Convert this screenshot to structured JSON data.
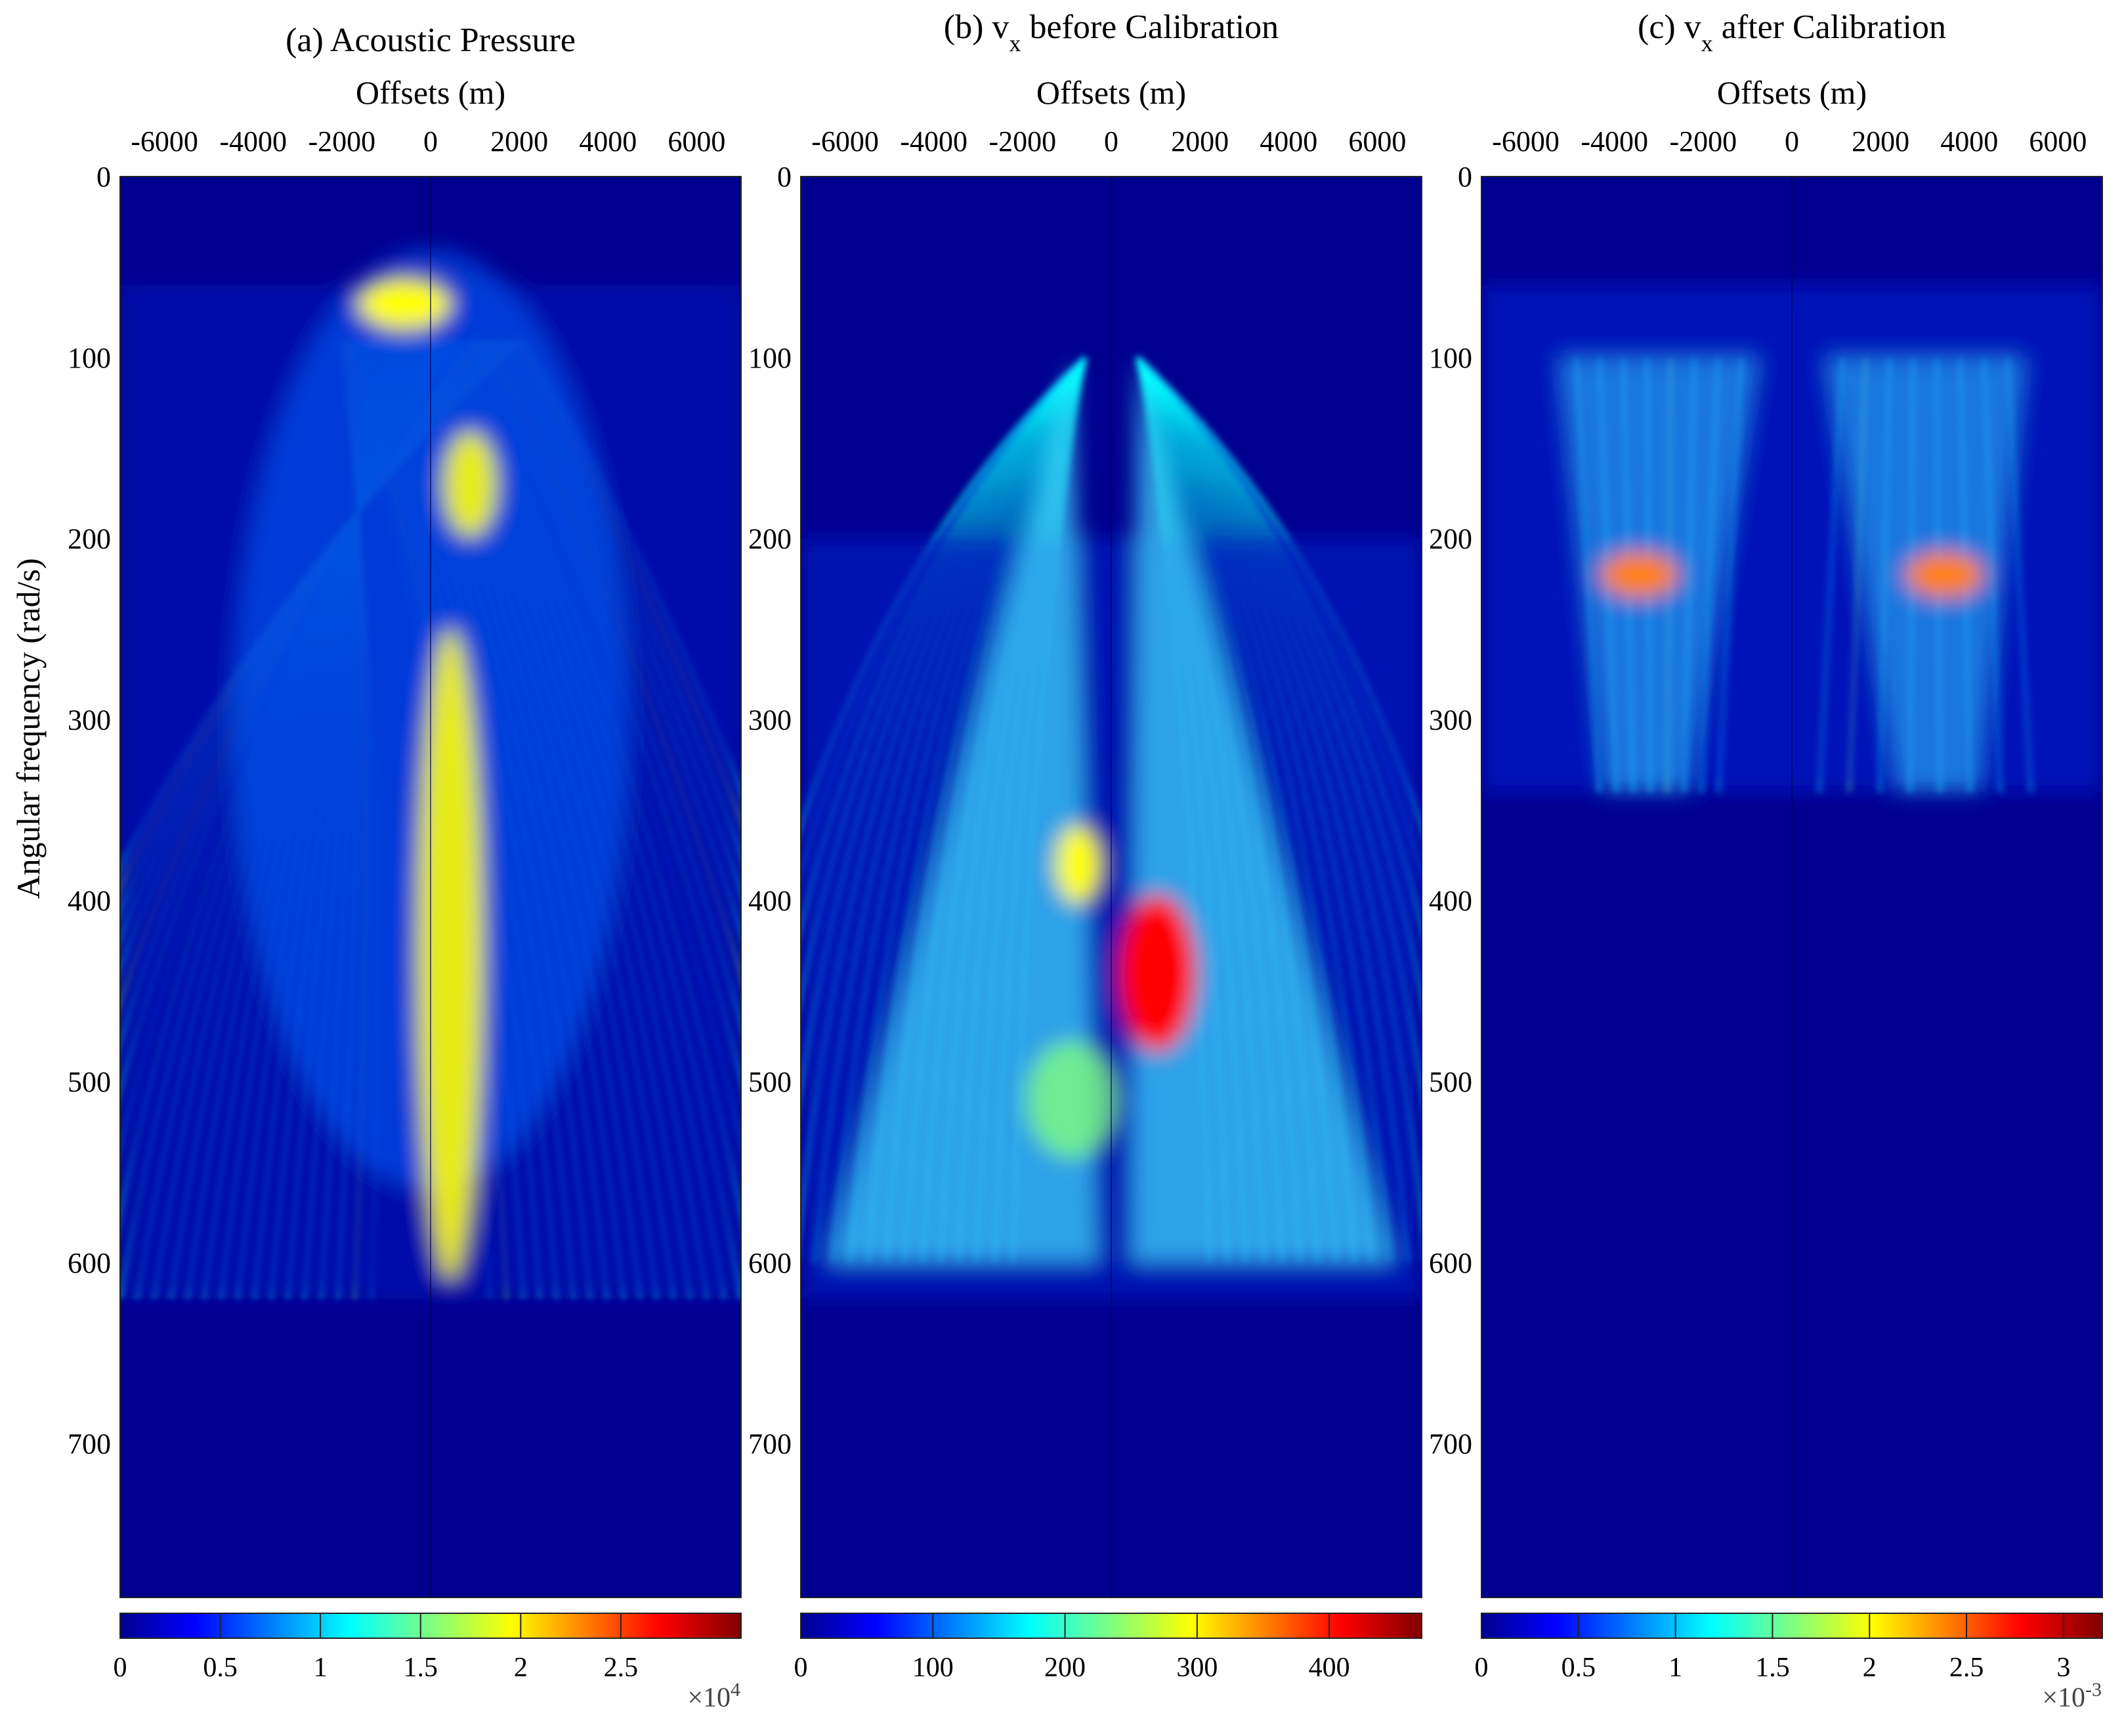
{
  "figure": {
    "ylabel": "Angular frequency (rad/s)"
  },
  "chart_data": [
    {
      "type": "heatmap",
      "title_prefix": "(a) Acoustic Pressure",
      "title_sub": "",
      "title_suffix": "",
      "xlabel": "Offsets (m)",
      "ylabel": "Angular frequency (rad/s)",
      "xlim": [
        -7000,
        7000
      ],
      "ylim": [
        0,
        785
      ],
      "x_ticks": [
        -6000,
        -4000,
        -2000,
        0,
        2000,
        4000,
        6000
      ],
      "y_ticks": [
        0,
        100,
        200,
        300,
        400,
        500,
        600,
        700
      ],
      "colormap": "jet",
      "colorbar": {
        "min": 0,
        "max": 3.1,
        "ticks": [
          0,
          0.5,
          1,
          1.5,
          2,
          2.5
        ],
        "tick_labels": [
          "0",
          "0.5",
          "1",
          "1.5",
          "2",
          "2.5"
        ],
        "multiplier_base": "×10",
        "multiplier_exp": "4"
      },
      "signal_band": [
        60,
        620
      ],
      "pattern": "symmetric dispersive arcs centered at zero offset, strongest near 0 m"
    },
    {
      "type": "heatmap",
      "title_prefix": "(b) v",
      "title_sub": "x",
      "title_suffix": " before Calibration",
      "xlabel": "Offsets (m)",
      "ylabel": "",
      "xlim": [
        -7000,
        7000
      ],
      "ylim": [
        0,
        785
      ],
      "x_ticks": [
        -6000,
        -4000,
        -2000,
        0,
        2000,
        4000,
        6000
      ],
      "y_ticks": [
        0,
        100,
        200,
        300,
        400,
        500,
        600,
        700
      ],
      "colormap": "jet",
      "colorbar": {
        "min": 0,
        "max": 470,
        "ticks": [
          0,
          100,
          200,
          300,
          400
        ],
        "tick_labels": [
          "0",
          "100",
          "200",
          "300",
          "400"
        ],
        "multiplier_base": "",
        "multiplier_exp": ""
      },
      "signal_band": [
        200,
        620
      ],
      "pattern": "broad arcs, high amplitude near 380-500 rad/s close to zero offset"
    },
    {
      "type": "heatmap",
      "title_prefix": "(c) v",
      "title_sub": "x",
      "title_suffix": " after Calibration",
      "xlabel": "Offsets (m)",
      "ylabel": "",
      "xlim": [
        -7000,
        7000
      ],
      "ylim": [
        0,
        785
      ],
      "x_ticks": [
        -6000,
        -4000,
        -2000,
        0,
        2000,
        4000,
        6000
      ],
      "y_ticks": [
        0,
        100,
        200,
        300,
        400,
        500,
        600,
        700
      ],
      "colormap": "jet",
      "colorbar": {
        "min": 0,
        "max": 3.2,
        "ticks": [
          0,
          0.5,
          1,
          1.5,
          2,
          2.5,
          3
        ],
        "tick_labels": [
          "0",
          "0.5",
          "1",
          "1.5",
          "2",
          "2.5",
          "3"
        ],
        "multiplier_base": "×10",
        "multiplier_exp": "-3"
      },
      "signal_band": [
        60,
        340
      ],
      "pattern": "two lobes at about ±3000 m, peak near 210-230 rad/s"
    }
  ]
}
